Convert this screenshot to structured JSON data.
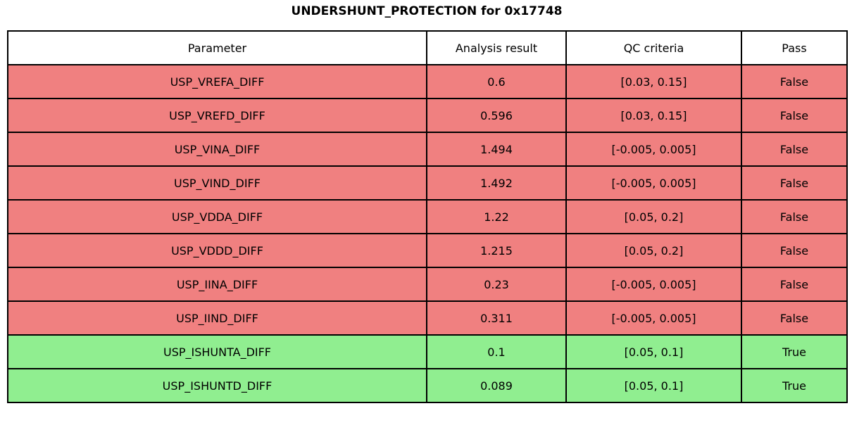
{
  "title": "UNDERSHUNT_PROTECTION for 0x17748",
  "colors": {
    "fail_row": "#f08080",
    "pass_row": "#90ee90",
    "header_row": "#ffffff",
    "border": "#000000",
    "text": "#000000"
  },
  "table": {
    "columns": [
      "Parameter",
      "Analysis result",
      "QC criteria",
      "Pass"
    ],
    "rows": [
      {
        "parameter": "USP_VREFA_DIFF",
        "result": "0.6",
        "criteria": "[0.03, 0.15]",
        "pass": "False"
      },
      {
        "parameter": "USP_VREFD_DIFF",
        "result": "0.596",
        "criteria": "[0.03, 0.15]",
        "pass": "False"
      },
      {
        "parameter": "USP_VINA_DIFF",
        "result": "1.494",
        "criteria": "[-0.005, 0.005]",
        "pass": "False"
      },
      {
        "parameter": "USP_VIND_DIFF",
        "result": "1.492",
        "criteria": "[-0.005, 0.005]",
        "pass": "False"
      },
      {
        "parameter": "USP_VDDA_DIFF",
        "result": "1.22",
        "criteria": "[0.05, 0.2]",
        "pass": "False"
      },
      {
        "parameter": "USP_VDDD_DIFF",
        "result": "1.215",
        "criteria": "[0.05, 0.2]",
        "pass": "False"
      },
      {
        "parameter": "USP_IINA_DIFF",
        "result": "0.23",
        "criteria": "[-0.005, 0.005]",
        "pass": "False"
      },
      {
        "parameter": "USP_IIND_DIFF",
        "result": "0.311",
        "criteria": "[-0.005, 0.005]",
        "pass": "False"
      },
      {
        "parameter": "USP_ISHUNTA_DIFF",
        "result": "0.1",
        "criteria": "[0.05, 0.1]",
        "pass": "True"
      },
      {
        "parameter": "USP_ISHUNTD_DIFF",
        "result": "0.089",
        "criteria": "[0.05, 0.1]",
        "pass": "True"
      }
    ]
  },
  "chart_data": {
    "type": "table",
    "title": "UNDERSHUNT_PROTECTION for 0x17748",
    "columns": [
      "Parameter",
      "Analysis result",
      "QC criteria",
      "Pass"
    ],
    "rows": [
      [
        "USP_VREFA_DIFF",
        0.6,
        "[0.03, 0.15]",
        false
      ],
      [
        "USP_VREFD_DIFF",
        0.596,
        "[0.03, 0.15]",
        false
      ],
      [
        "USP_VINA_DIFF",
        1.494,
        "[-0.005, 0.005]",
        false
      ],
      [
        "USP_VIND_DIFF",
        1.492,
        "[-0.005, 0.005]",
        false
      ],
      [
        "USP_VDDA_DIFF",
        1.22,
        "[0.05, 0.2]",
        false
      ],
      [
        "USP_VDDD_DIFF",
        1.215,
        "[0.05, 0.2]",
        false
      ],
      [
        "USP_IINA_DIFF",
        0.23,
        "[-0.005, 0.005]",
        false
      ],
      [
        "USP_IIND_DIFF",
        0.311,
        "[-0.005, 0.005]",
        false
      ],
      [
        "USP_ISHUNTA_DIFF",
        0.1,
        "[0.05, 0.1]",
        true
      ],
      [
        "USP_ISHUNTD_DIFF",
        0.089,
        "[0.05, 0.1]",
        true
      ]
    ],
    "row_color_rule": "pass=true -> lightgreen #90ee90, pass=false -> lightcoral #f08080",
    "legend_position": "none",
    "grid": "full-borders"
  }
}
